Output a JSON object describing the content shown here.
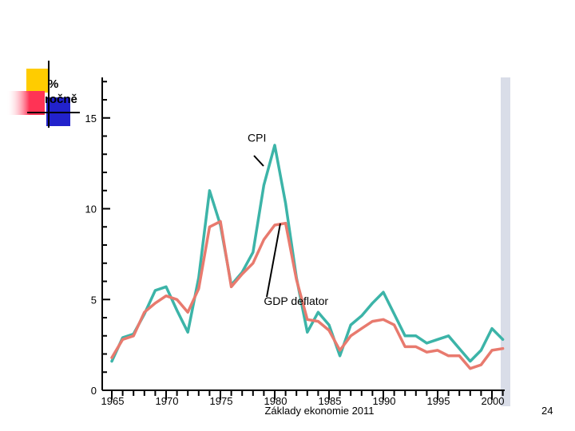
{
  "unit_label": {
    "line1": "%",
    "line2": "ročně"
  },
  "footer": "Základy ekonomie 2011",
  "page_number": "24",
  "colors": {
    "cpi": "#3cb4a8",
    "deflator": "#e87a6e",
    "panel_shadow": "#d9dde8",
    "logo_yellow": "#ffcc00",
    "logo_red": "#ff3355",
    "logo_blue": "#2222cc"
  },
  "chart_data": {
    "type": "line",
    "title": "",
    "xlabel": "",
    "ylabel": "% ročně",
    "xlim": [
      1965,
      2001
    ],
    "ylim": [
      0,
      17
    ],
    "x_ticks": [
      1965,
      1970,
      1975,
      1980,
      1985,
      1990,
      1995,
      2000
    ],
    "x_tick_labels": [
      "1965",
      "1970",
      "1975",
      "1980",
      "1985",
      "1990",
      "1995",
      "2000"
    ],
    "y_ticks": [
      0,
      5,
      10,
      15
    ],
    "y_tick_labels": [
      "0",
      "5",
      "10",
      "15"
    ],
    "x": [
      1965,
      1966,
      1967,
      1968,
      1969,
      1970,
      1971,
      1972,
      1973,
      1974,
      1975,
      1976,
      1977,
      1978,
      1979,
      1980,
      1981,
      1982,
      1983,
      1984,
      1985,
      1986,
      1987,
      1988,
      1989,
      1990,
      1991,
      1992,
      1993,
      1994,
      1995,
      1996,
      1997,
      1998,
      1999,
      2000,
      2001
    ],
    "series": [
      {
        "name": "CPI",
        "values": [
          1.6,
          2.9,
          3.1,
          4.2,
          5.5,
          5.7,
          4.4,
          3.2,
          6.2,
          11.0,
          9.1,
          5.8,
          6.5,
          7.6,
          11.3,
          13.5,
          10.3,
          6.2,
          3.2,
          4.3,
          3.6,
          1.9,
          3.6,
          4.1,
          4.8,
          5.4,
          4.2,
          3.0,
          3.0,
          2.6,
          2.8,
          3.0,
          2.3,
          1.6,
          2.2,
          3.4,
          2.8
        ]
      },
      {
        "name": "GDP deflator",
        "values": [
          1.8,
          2.8,
          3.0,
          4.3,
          4.8,
          5.2,
          5.0,
          4.3,
          5.6,
          9.0,
          9.3,
          5.7,
          6.4,
          7.0,
          8.3,
          9.1,
          9.2,
          6.1,
          3.9,
          3.8,
          3.3,
          2.2,
          3.0,
          3.4,
          3.8,
          3.9,
          3.6,
          2.4,
          2.4,
          2.1,
          2.2,
          1.9,
          1.9,
          1.2,
          1.4,
          2.2,
          2.3
        ]
      }
    ],
    "annotations": [
      {
        "text": "CPI",
        "series": "CPI",
        "x": 1979.5,
        "y": 13.0,
        "label_x": 1977.5,
        "label_y": 13.7
      },
      {
        "text": "GDP deflator",
        "series": "GDP deflator",
        "x": 1980.5,
        "y": 9.0,
        "label_x": 1979.0,
        "label_y": 4.7
      }
    ]
  }
}
